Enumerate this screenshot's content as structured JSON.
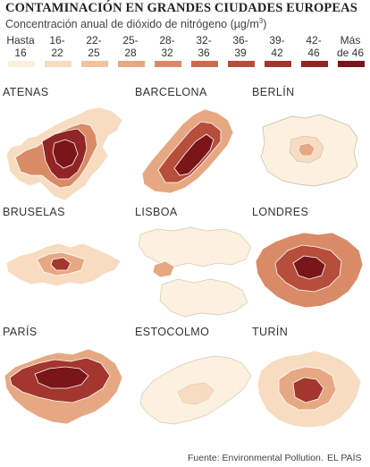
{
  "title": "CONTAMINACIÓN EN GRANDES CIUDADES EUROPEAS",
  "subtitle": "Concentración anual de dióxido de nitrógeno (µg/m",
  "subtitle_sup": "3",
  "subtitle_end": ")",
  "legend": [
    {
      "label": "Hasta\n16",
      "color": "#fcf0df"
    },
    {
      "label": "16-\n22",
      "color": "#f7dcc1"
    },
    {
      "label": "22-\n25",
      "color": "#f0c3a0"
    },
    {
      "label": "25-\n28",
      "color": "#e6a882"
    },
    {
      "label": "28-\n32",
      "color": "#d98b68"
    },
    {
      "label": "32-\n36",
      "color": "#c96b4e"
    },
    {
      "label": "36-\n39",
      "color": "#b64e3b"
    },
    {
      "label": "39-\n42",
      "color": "#a3362e"
    },
    {
      "label": "42-\n46",
      "color": "#912424"
    },
    {
      "label": "Más\nde 46",
      "color": "#7a1519"
    }
  ],
  "cities": [
    {
      "name": "ATENAS"
    },
    {
      "name": "BARCELONA"
    },
    {
      "name": "BERLÍN"
    },
    {
      "name": "BRUSELAS"
    },
    {
      "name": "LISBOA"
    },
    {
      "name": "LONDRES"
    },
    {
      "name": "PARÍS"
    },
    {
      "name": "ESTOCOLMO"
    },
    {
      "name": "TURÍN"
    }
  ],
  "footer": {
    "source": "Fuente: Environmental Pollution.",
    "brand": "EL PAÍS"
  }
}
